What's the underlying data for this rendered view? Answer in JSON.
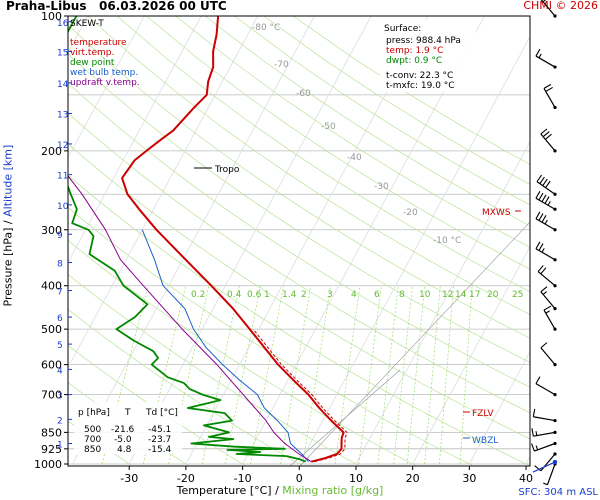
{
  "header": {
    "station": "Praha-Libus",
    "datetime": "06.03.2026 00 UTC",
    "copyright": "CHMI © 2026"
  },
  "footer": {
    "sfc": "SFC: 304 m ASL"
  },
  "axes": {
    "x_title_temp": "Temperature [°C]",
    "x_title_sep": " / ",
    "x_title_mix": "Mixing ratio [g/kg]",
    "y_title_pressure": "Pressure [hPa]",
    "y_title_sep": " / ",
    "y_title_alt": "Altitude [km]"
  },
  "legend": {
    "title": "SKEW-T",
    "items": [
      {
        "label": "temperature",
        "color": "#cc0000"
      },
      {
        "label": "virt.temp.",
        "color": "#cc0000"
      },
      {
        "label": "dew point",
        "color": "#008800"
      },
      {
        "label": "wet bulb temp.",
        "color": "#1a5fcc"
      },
      {
        "label": "updraft v.temp.",
        "color": "#8a0090"
      }
    ]
  },
  "surface": {
    "title": "Surface:",
    "press": "press: 988.4 hPa",
    "temp": "temp: 1.9 °C",
    "dwpt": "dwpt: 0.9 °C",
    "tconv": "t-conv: 22.3 °C",
    "tmxfc": "t-mxfc: 19.0 °C"
  },
  "table": {
    "header": [
      "p [hPa]",
      "T",
      "Td [°C]"
    ],
    "rows": [
      [
        "500",
        "-21.6",
        "-45.1"
      ],
      [
        "700",
        "-5.0",
        "-23.7"
      ],
      [
        "850",
        "4.8",
        "-15.4"
      ]
    ]
  },
  "levels": {
    "tropo": "Tropo",
    "mxws": "MXWS",
    "fzlv": "FZLV",
    "wbzl": "WBZL"
  },
  "colors": {
    "temperature": "#cc0000",
    "dewpoint": "#008800",
    "wetbulb": "#1a5fcc",
    "updraft": "#8a0090",
    "mixing": "#99dd66",
    "isotherm_label": "#999999",
    "altitude": "#1a3ccc"
  },
  "chart_data": {
    "type": "line",
    "title": "SKEW-T",
    "xlabel": "Temperature [°C] / Mixing ratio [g/kg]",
    "ylabel": "Pressure [hPa] / Altitude [km]",
    "y_scale": "log-pressure",
    "ylim_hpa": [
      1000,
      100
    ],
    "xlim_at_1000hpa": [
      -40,
      40
    ],
    "x_ticks": [
      -30,
      -20,
      -10,
      0,
      10,
      20,
      30,
      40
    ],
    "pressure_ticks": [
      100,
      200,
      300,
      400,
      500,
      600,
      700,
      850,
      925,
      1000
    ],
    "pressure_gridlines": [
      100,
      150,
      200,
      250,
      300,
      400,
      500,
      600,
      700,
      850,
      925,
      1000
    ],
    "skewed_isotherm_labels": [
      -80,
      -70,
      -60,
      -50,
      -40,
      -30,
      -20,
      -10
    ],
    "mixing_ratio_labels": [
      "0.2",
      "0.4",
      "0.6",
      "1",
      "1.4",
      "2",
      "3",
      "4",
      "6",
      "8",
      "10",
      "12",
      "14",
      "17",
      "20",
      "25"
    ],
    "altitude_km_ticks": [
      {
        "km": 1,
        "p": 900
      },
      {
        "km": 2,
        "p": 795
      },
      {
        "km": 3,
        "p": 700
      },
      {
        "km": 4,
        "p": 615
      },
      {
        "km": 5,
        "p": 540
      },
      {
        "km": 6,
        "p": 470
      },
      {
        "km": 7,
        "p": 410
      },
      {
        "km": 8,
        "p": 355
      },
      {
        "km": 9,
        "p": 307
      },
      {
        "km": 10,
        "p": 264
      },
      {
        "km": 11,
        "p": 226
      },
      {
        "km": 12,
        "p": 193
      },
      {
        "km": 13,
        "p": 165
      },
      {
        "km": 14,
        "p": 141
      },
      {
        "km": 15,
        "p": 120
      },
      {
        "km": 16,
        "p": 103
      }
    ],
    "series": [
      {
        "name": "temperature",
        "unit": "°C",
        "points": [
          [
            988,
            1.9
          ],
          [
            970,
            4.0
          ],
          [
            950,
            5.7
          ],
          [
            925,
            6.0
          ],
          [
            900,
            5.5
          ],
          [
            875,
            5.0
          ],
          [
            850,
            4.8
          ],
          [
            800,
            1.5
          ],
          [
            750,
            -1.8
          ],
          [
            700,
            -5.0
          ],
          [
            650,
            -9.0
          ],
          [
            600,
            -13.2
          ],
          [
            550,
            -17.2
          ],
          [
            500,
            -21.6
          ],
          [
            450,
            -26.5
          ],
          [
            400,
            -32.5
          ],
          [
            350,
            -39.5
          ],
          [
            300,
            -47.5
          ],
          [
            270,
            -52.5
          ],
          [
            250,
            -56.0
          ],
          [
            230,
            -58.5
          ],
          [
            210,
            -58.0
          ],
          [
            200,
            -56.8
          ],
          [
            190,
            -55.5
          ],
          [
            180,
            -54.0
          ],
          [
            160,
            -52.5
          ],
          [
            150,
            -51.5
          ],
          [
            140,
            -52.5
          ],
          [
            130,
            -53.0
          ],
          [
            120,
            -54.5
          ],
          [
            110,
            -55.5
          ],
          [
            100,
            -57.0
          ]
        ]
      },
      {
        "name": "dew point",
        "unit": "°C",
        "points": [
          [
            988,
            0.9
          ],
          [
            975,
            -0.5
          ],
          [
            960,
            -3.0
          ],
          [
            950,
            -12.0
          ],
          [
            940,
            -8.0
          ],
          [
            930,
            -14.0
          ],
          [
            925,
            -4.0
          ],
          [
            915,
            -13.0
          ],
          [
            900,
            -21.0
          ],
          [
            880,
            -14.0
          ],
          [
            870,
            -18.5
          ],
          [
            860,
            -17.0
          ],
          [
            850,
            -15.4
          ],
          [
            820,
            -20.5
          ],
          [
            800,
            -16.0
          ],
          [
            770,
            -18.0
          ],
          [
            750,
            -25.0
          ],
          [
            720,
            -20.0
          ],
          [
            700,
            -23.7
          ],
          [
            680,
            -26.5
          ],
          [
            660,
            -28.0
          ],
          [
            640,
            -31.5
          ],
          [
            600,
            -35.5
          ],
          [
            580,
            -35.0
          ],
          [
            560,
            -36.5
          ],
          [
            530,
            -41.0
          ],
          [
            500,
            -45.1
          ],
          [
            470,
            -43.0
          ],
          [
            440,
            -42.0
          ],
          [
            400,
            -48.0
          ],
          [
            370,
            -51.0
          ],
          [
            340,
            -57.0
          ],
          [
            310,
            -58.0
          ],
          [
            300,
            -59.5
          ],
          [
            290,
            -63.0
          ],
          [
            270,
            -63.5
          ],
          [
            250,
            -66.0
          ],
          [
            220,
            -70.0
          ],
          [
            200,
            -72.0
          ],
          [
            170,
            -78.5
          ],
          [
            150,
            -81.0
          ],
          [
            130,
            -85.5
          ],
          [
            115,
            -82.0
          ],
          [
            100,
            -82.0
          ]
        ]
      },
      {
        "name": "wet bulb temp.",
        "unit": "°C",
        "points": [
          [
            988,
            1.4
          ],
          [
            950,
            -0.5
          ],
          [
            900,
            -3.5
          ],
          [
            850,
            -5.0
          ],
          [
            800,
            -8.0
          ],
          [
            750,
            -11.5
          ],
          [
            700,
            -14.0
          ],
          [
            650,
            -18.5
          ],
          [
            600,
            -23.0
          ],
          [
            550,
            -27.5
          ],
          [
            500,
            -31.5
          ],
          [
            450,
            -35.0
          ],
          [
            400,
            -41.0
          ],
          [
            350,
            -45.0
          ],
          [
            300,
            -50.0
          ]
        ]
      },
      {
        "name": "updraft v.temp.",
        "unit": "°C",
        "points": [
          [
            988,
            1.9
          ],
          [
            950,
            -1.0
          ],
          [
            900,
            -4.5
          ],
          [
            850,
            -7.5
          ],
          [
            800,
            -10.0
          ],
          [
            700,
            -16.5
          ],
          [
            600,
            -24.0
          ],
          [
            500,
            -33.5
          ],
          [
            400,
            -44.5
          ],
          [
            350,
            -51.0
          ],
          [
            300,
            -56.5
          ],
          [
            250,
            -64.0
          ],
          [
            200,
            -74.0
          ],
          [
            150,
            -86.0
          ],
          [
            100,
            -100.0
          ]
        ]
      }
    ]
  },
  "wind_barbs": [
    {
      "p": 1000,
      "dir": 200,
      "speed_kt": 5
    },
    {
      "p": 950,
      "dir": 220,
      "speed_kt": 10
    },
    {
      "p": 900,
      "dir": 250,
      "speed_kt": 15
    },
    {
      "p": 850,
      "dir": 260,
      "speed_kt": 15
    },
    {
      "p": 800,
      "dir": 280,
      "speed_kt": 10
    },
    {
      "p": 700,
      "dir": 300,
      "speed_kt": 10
    },
    {
      "p": 600,
      "dir": 320,
      "speed_kt": 10
    },
    {
      "p": 500,
      "dir": 330,
      "speed_kt": 15
    },
    {
      "p": 450,
      "dir": 320,
      "speed_kt": 15
    },
    {
      "p": 400,
      "dir": 310,
      "speed_kt": 20
    },
    {
      "p": 350,
      "dir": 300,
      "speed_kt": 25
    },
    {
      "p": 300,
      "dir": 300,
      "speed_kt": 35
    },
    {
      "p": 270,
      "dir": 300,
      "speed_kt": 45
    },
    {
      "p": 250,
      "dir": 305,
      "speed_kt": 40
    },
    {
      "p": 200,
      "dir": 320,
      "speed_kt": 30
    },
    {
      "p": 160,
      "dir": 330,
      "speed_kt": 20
    },
    {
      "p": 130,
      "dir": 300,
      "speed_kt": 15
    },
    {
      "p": 100,
      "dir": 320,
      "speed_kt": 15
    }
  ]
}
